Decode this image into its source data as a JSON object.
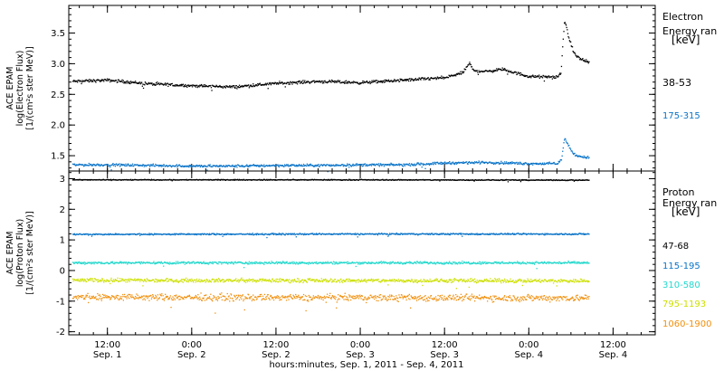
{
  "figure": {
    "xlabel": "hours:minutes, Sep.  1, 2011 - Sep.  4, 2011",
    "x_ticks": [
      {
        "time": "12:00",
        "date": "Sep. 1",
        "hour": 12
      },
      {
        "time": "0:00",
        "date": "Sep. 2",
        "hour": 24
      },
      {
        "time": "12:00",
        "date": "Sep. 2",
        "hour": 36
      },
      {
        "time": "0:00",
        "date": "Sep. 3",
        "hour": 48
      },
      {
        "time": "12:00",
        "date": "Sep. 3",
        "hour": 60
      },
      {
        "time": "0:00",
        "date": "Sep. 4",
        "hour": 72
      },
      {
        "time": "12:00",
        "date": "Sep. 4",
        "hour": 84
      }
    ]
  },
  "chart_data": [
    {
      "type": "scatter",
      "ylabel_lines": [
        "ACE EPAM",
        "log(Electron Flux)",
        "[1/(cm²s ster MeV)]"
      ],
      "xlim_hours": [
        6.5,
        90
      ],
      "ylim": [
        1.25,
        3.95
      ],
      "yticks": [
        1.5,
        2.0,
        2.5,
        3.0,
        3.5
      ],
      "ytick_labels": [
        "1.5",
        "2.0",
        "2.5",
        "3.0",
        "3.5"
      ],
      "legend_title": [
        "Electron",
        "Energy ran",
        "[keV]"
      ],
      "series": [
        {
          "name": "38-53",
          "color": "#000000",
          "points": [
            [
              7,
              2.72
            ],
            [
              12,
              2.74
            ],
            [
              18,
              2.68
            ],
            [
              24,
              2.65
            ],
            [
              30,
              2.63
            ],
            [
              36,
              2.69
            ],
            [
              42,
              2.72
            ],
            [
              48,
              2.7
            ],
            [
              54,
              2.74
            ],
            [
              60,
              2.78
            ],
            [
              62.5,
              2.86
            ],
            [
              63.5,
              3.02
            ],
            [
              64,
              2.9
            ],
            [
              66,
              2.88
            ],
            [
              68,
              2.92
            ],
            [
              72,
              2.8
            ],
            [
              76,
              2.79
            ],
            [
              76.5,
              2.85
            ],
            [
              77,
              3.72
            ],
            [
              77.7,
              3.4
            ],
            [
              78.5,
              3.15
            ],
            [
              79.5,
              3.07
            ],
            [
              80.5,
              3.03
            ]
          ]
        },
        {
          "name": "175-315",
          "color": "#0a74c8",
          "points": [
            [
              7,
              1.36
            ],
            [
              12,
              1.36
            ],
            [
              18,
              1.35
            ],
            [
              24,
              1.34
            ],
            [
              30,
              1.34
            ],
            [
              36,
              1.35
            ],
            [
              42,
              1.35
            ],
            [
              48,
              1.36
            ],
            [
              54,
              1.36
            ],
            [
              60,
              1.39
            ],
            [
              66,
              1.4
            ],
            [
              72,
              1.38
            ],
            [
              76,
              1.38
            ],
            [
              76.6,
              1.45
            ],
            [
              77,
              1.8
            ],
            [
              77.8,
              1.62
            ],
            [
              78.5,
              1.52
            ],
            [
              79.5,
              1.49
            ],
            [
              80.5,
              1.48
            ]
          ]
        }
      ]
    },
    {
      "type": "scatter",
      "ylabel_lines": [
        "ACE EPAM",
        "log(Proton Flux)",
        "[1/(cm²s ster MeV)]"
      ],
      "xlim_hours": [
        6.5,
        90
      ],
      "ylim": [
        -2.1,
        3.25
      ],
      "yticks": [
        -2,
        -1,
        0,
        1,
        2,
        3
      ],
      "ytick_labels": [
        "-2",
        "-1",
        "0",
        "1",
        "2",
        "3"
      ],
      "legend_title": [
        "Proton",
        "Energy ran",
        "[keV]"
      ],
      "series": [
        {
          "name": "47-68",
          "color": "#000000",
          "points": [
            [
              7,
              2.98
            ],
            [
              48,
              2.98
            ],
            [
              80.5,
              2.97
            ]
          ]
        },
        {
          "name": "115-195",
          "color": "#0a74c8",
          "points": [
            [
              7,
              1.2
            ],
            [
              48,
              1.21
            ],
            [
              80.5,
              1.21
            ]
          ]
        },
        {
          "name": "310-580",
          "color": "#22d8cc",
          "points": [
            [
              7,
              0.27
            ],
            [
              48,
              0.27
            ],
            [
              80.5,
              0.27
            ]
          ]
        },
        {
          "name": "795-1193",
          "color": "#cde000",
          "points": [
            [
              7,
              -0.3
            ],
            [
              48,
              -0.31
            ],
            [
              80.5,
              -0.32
            ]
          ]
        },
        {
          "name": "1060-1900",
          "color": "#f0900e",
          "points": [
            [
              7,
              -0.85
            ],
            [
              48,
              -0.87
            ],
            [
              80.5,
              -0.88
            ]
          ]
        }
      ]
    }
  ]
}
